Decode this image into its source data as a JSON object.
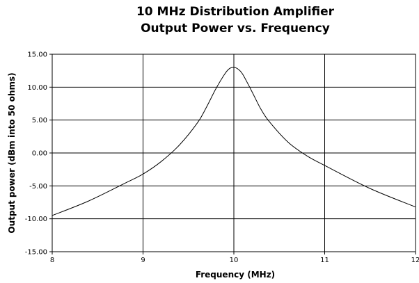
{
  "chart_data": {
    "type": "line",
    "title_lines": [
      "10 MHz Distribution Amplifier",
      "Output Power vs. Frequency"
    ],
    "xlabel": "Frequency (MHz)",
    "ylabel": "Output power (dBm into 50 ohms)",
    "xlim": [
      8,
      12
    ],
    "ylim": [
      -15,
      15
    ],
    "x_ticks": [
      8,
      9,
      10,
      11,
      12
    ],
    "x_tick_labels": [
      "8",
      "9",
      "10",
      "11",
      "12"
    ],
    "y_ticks": [
      -15,
      -10,
      -5,
      0,
      5,
      10,
      15
    ],
    "y_tick_labels": [
      "-15.00",
      "-10.00",
      "-5.00",
      "0.00",
      "5.00",
      "10.00",
      "15.00"
    ],
    "grid": true,
    "legend": "none",
    "series": [
      {
        "color": "#000000",
        "x": [
          8.0,
          8.4,
          8.8,
          9.0,
          9.2,
          9.4,
          9.6,
          9.7,
          9.8,
          9.9,
          9.95,
          10.0,
          10.05,
          10.1,
          10.2,
          10.3,
          10.4,
          10.6,
          10.8,
          11.0,
          11.5,
          12.0
        ],
        "y": [
          -9.5,
          -7.3,
          -4.6,
          -3.2,
          -1.3,
          1.2,
          4.6,
          7.0,
          9.7,
          12.0,
          12.8,
          13.0,
          12.7,
          11.9,
          9.3,
          6.6,
          4.6,
          1.6,
          -0.4,
          -1.9,
          -5.4,
          -8.2
        ]
      }
    ]
  }
}
